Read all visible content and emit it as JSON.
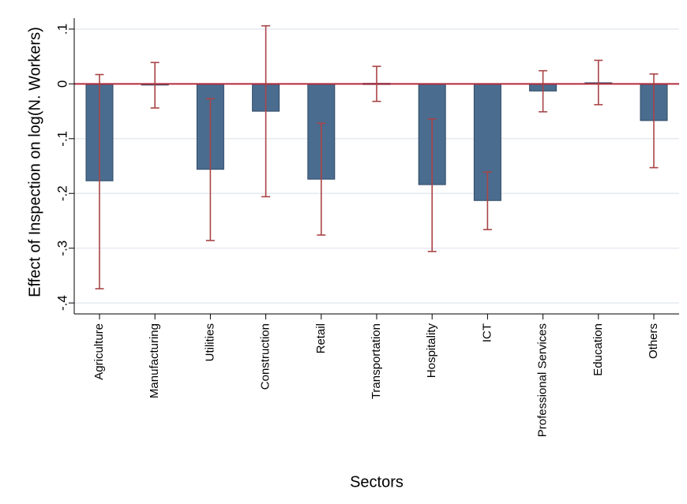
{
  "chart_data": {
    "type": "bar",
    "title": "",
    "xlabel": "Sectors",
    "ylabel": "Effect of Inspection on log(N. Workers)",
    "categories": [
      "Agriculture",
      "Manufacturing",
      "Utilities",
      "Construction",
      "Retail",
      "Transportation",
      "Hospitality",
      "ICT",
      "Professional Services",
      "Education",
      "Others"
    ],
    "values": [
      -0.177,
      -0.002,
      -0.156,
      -0.05,
      -0.174,
      0.001,
      -0.184,
      -0.213,
      -0.013,
      0.002,
      -0.067
    ],
    "ci_low": [
      -0.374,
      -0.044,
      -0.286,
      -0.206,
      -0.276,
      -0.032,
      -0.306,
      -0.266,
      -0.051,
      -0.038,
      -0.153
    ],
    "ci_high": [
      0.017,
      0.039,
      -0.027,
      0.106,
      -0.072,
      0.032,
      -0.064,
      -0.161,
      0.024,
      0.043,
      0.018
    ],
    "yticks": [
      0.1,
      0,
      -0.1,
      -0.2,
      -0.3,
      -0.4
    ],
    "ytick_labels": [
      ".1",
      "0",
      "-.1",
      "-.2",
      "-.3",
      "-.4"
    ],
    "ylim": [
      -0.42,
      0.12
    ],
    "grid": true,
    "reference_line": 0,
    "colors": {
      "bar_fill": "#4a6c8f",
      "bar_stroke": "#2f4a66",
      "error_bar": "#a94446",
      "zero_line": "#b22b3c",
      "grid": "#e6eaef"
    }
  }
}
